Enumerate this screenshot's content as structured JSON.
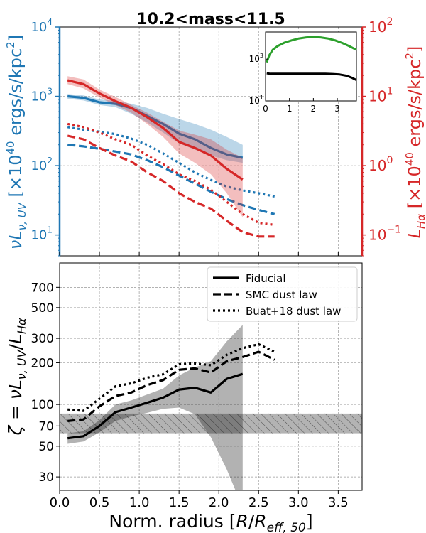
{
  "colors": {
    "uv": "#1f77b4",
    "ha": "#d62728",
    "green": "#2ca02c",
    "black": "#000000",
    "grid": "#999999"
  },
  "chart_data": [
    {
      "id": "top",
      "type": "line",
      "title": "10.2<mass<11.5",
      "x_range": [
        0.0,
        3.8
      ],
      "left_axis": {
        "label": "νL_{ν,UV} [×10^{40} ergs/s/kpc^{2}]",
        "label_parts": [
          "ν",
          "L",
          "ν, UV",
          " [×10",
          "40",
          " ergs/s/kpc",
          "2",
          "]"
        ],
        "scale": "log",
        "range": [
          5,
          10000
        ],
        "ticks": [
          {
            "v": 10,
            "label": "10",
            "exp": "1"
          },
          {
            "v": 100,
            "label": "10",
            "exp": "2"
          },
          {
            "v": 1000,
            "label": "10",
            "exp": "3"
          },
          {
            "v": 10000,
            "label": "10",
            "exp": "4"
          }
        ]
      },
      "right_axis": {
        "label": "L_{Hα} [×10^{40} ergs/s/kpc^{2}]",
        "label_parts": [
          "L",
          "Hα",
          " [×10",
          "40",
          " ergs/s/kpc",
          "2",
          "]"
        ],
        "scale": "log",
        "range": [
          0.05,
          100
        ],
        "ticks": [
          {
            "v": 0.1,
            "label": "10",
            "exp": "−1"
          },
          {
            "v": 1,
            "label": "10",
            "exp": "0"
          },
          {
            "v": 10,
            "label": "10",
            "exp": "1"
          },
          {
            "v": 100,
            "label": "10",
            "exp": "2"
          }
        ]
      },
      "series": [
        {
          "name": "UV fiducial",
          "axis": "left",
          "color": "uv",
          "style": "solid",
          "x": [
            0.1,
            0.3,
            0.5,
            0.7,
            0.9,
            1.1,
            1.3,
            1.5,
            1.7,
            1.9,
            2.1,
            2.3
          ],
          "y": [
            1000,
            950,
            820,
            780,
            680,
            520,
            400,
            290,
            240,
            180,
            145,
            130
          ]
        },
        {
          "name": "UV fiducial band",
          "axis": "left",
          "color": "uv",
          "style": "band",
          "x": [
            0.1,
            0.3,
            0.5,
            0.7,
            0.9,
            1.1,
            1.3,
            1.5,
            1.7,
            1.9,
            2.1,
            2.3
          ],
          "lo": [
            920,
            870,
            750,
            700,
            560,
            420,
            300,
            210,
            170,
            140,
            120,
            110
          ],
          "hi": [
            1080,
            1030,
            900,
            860,
            780,
            680,
            560,
            470,
            400,
            330,
            260,
            200
          ]
        },
        {
          "name": "UV SMC",
          "axis": "left",
          "color": "uv",
          "style": "dashed",
          "x": [
            0.1,
            0.3,
            0.5,
            0.7,
            0.9,
            1.1,
            1.3,
            1.5,
            1.7,
            1.9,
            2.1,
            2.3,
            2.5,
            2.7
          ],
          "y": [
            200,
            190,
            175,
            160,
            145,
            120,
            95,
            72,
            55,
            42,
            33,
            27,
            23,
            20
          ]
        },
        {
          "name": "UV Buat+18",
          "axis": "left",
          "color": "uv",
          "style": "dotted",
          "x": [
            0.1,
            0.3,
            0.5,
            0.7,
            0.9,
            1.1,
            1.3,
            1.5,
            1.7,
            1.9,
            2.1,
            2.3,
            2.5,
            2.7
          ],
          "y": [
            360,
            330,
            310,
            285,
            245,
            200,
            150,
            110,
            80,
            62,
            50,
            44,
            40,
            36
          ]
        },
        {
          "name": "Hα fiducial",
          "axis": "right",
          "color": "ha",
          "style": "solid",
          "x": [
            0.1,
            0.3,
            0.5,
            0.7,
            0.9,
            1.1,
            1.3,
            1.5,
            1.7,
            1.9,
            2.1,
            2.3
          ],
          "y": [
            17,
            15,
            11,
            8.5,
            6.8,
            5,
            3.5,
            2.2,
            1.8,
            1.4,
            0.9,
            0.63
          ]
        },
        {
          "name": "Hα fiducial band",
          "axis": "right",
          "color": "ha",
          "style": "band",
          "x": [
            0.1,
            0.3,
            0.5,
            0.7,
            0.9,
            1.1,
            1.3,
            1.5,
            1.7,
            1.9,
            2.1,
            2.3
          ],
          "lo": [
            15,
            13,
            9.6,
            7.5,
            5.8,
            4,
            2.6,
            1.5,
            1.1,
            0.75,
            0.4,
            0.18
          ],
          "hi": [
            19.5,
            17.5,
            12.5,
            9.8,
            7.5,
            5.8,
            4.3,
            3.2,
            2.8,
            2.4,
            1.7,
            1.3
          ]
        },
        {
          "name": "Hα SMC",
          "axis": "right",
          "color": "ha",
          "style": "dashed",
          "x": [
            0.1,
            0.3,
            0.5,
            0.7,
            0.9,
            1.1,
            1.3,
            1.5,
            1.7,
            1.9,
            2.1,
            2.3,
            2.5,
            2.7
          ],
          "y": [
            2.7,
            2.4,
            1.8,
            1.4,
            1.15,
            0.8,
            0.6,
            0.4,
            0.3,
            0.24,
            0.16,
            0.11,
            0.095,
            0.095
          ]
        },
        {
          "name": "Hα Buat+18",
          "axis": "right",
          "color": "ha",
          "style": "dotted",
          "x": [
            0.1,
            0.3,
            0.5,
            0.7,
            0.9,
            1.1,
            1.3,
            1.5,
            1.7,
            1.9,
            2.1,
            2.3,
            2.5,
            2.7
          ],
          "y": [
            4,
            3.6,
            3,
            2.4,
            2,
            1.4,
            1.05,
            0.75,
            0.6,
            0.45,
            0.3,
            0.2,
            0.15,
            0.14
          ]
        }
      ],
      "inset": {
        "type": "line",
        "x_range": [
          0.0,
          3.8
        ],
        "y_scale": "log",
        "y_range": [
          10,
          20000
        ],
        "x_ticks": [
          0,
          1,
          2,
          3
        ],
        "y_ticks": [
          {
            "v": 10,
            "label": "10",
            "exp": "1"
          },
          {
            "v": 1000,
            "label": "10",
            "exp": "3"
          }
        ],
        "series": [
          {
            "name": "green",
            "color": "green",
            "x": [
              0.05,
              0.15,
              0.3,
              0.5,
              0.8,
              1.1,
              1.4,
              1.7,
              2.0,
              2.3,
              2.6,
              2.9,
              3.2,
              3.5,
              3.8
            ],
            "y": [
              700,
              1500,
              2800,
              4200,
              6200,
              8000,
              9800,
              11000,
              11500,
              11000,
              9800,
              8000,
              6000,
              4200,
              2800
            ]
          },
          {
            "name": "black",
            "color": "black",
            "x": [
              0.05,
              0.2,
              0.5,
              1.0,
              1.5,
              2.0,
              2.5,
              2.8,
              3.1,
              3.4,
              3.6,
              3.8
            ],
            "y": [
              210,
              200,
              200,
              200,
              200,
              200,
              200,
              195,
              185,
              160,
              130,
              100
            ]
          }
        ]
      }
    },
    {
      "id": "bottom",
      "type": "line",
      "x_range": [
        0.0,
        3.8
      ],
      "xlabel_parts": [
        "Norm. radius [",
        "R",
        "/",
        "R",
        "eff, 50",
        "]"
      ],
      "x_ticks": [
        0.0,
        0.5,
        1.0,
        1.5,
        2.0,
        2.5,
        3.0,
        3.5
      ],
      "x_tick_labels": [
        "0.0",
        "0.5",
        "1.0",
        "1.5",
        "2.0",
        "2.5",
        "3.0",
        "3.5"
      ],
      "y_label_parts": [
        "ζ = ν",
        "L",
        "ν, UV",
        "/",
        "L",
        "Hα"
      ],
      "y_scale": "log",
      "y_range": [
        24,
        1050
      ],
      "y_ticks": [
        30,
        50,
        70,
        100,
        200,
        300,
        500,
        700
      ],
      "y_tick_labels": [
        "30",
        "50",
        "70",
        "100",
        "200",
        "300",
        "500",
        "700"
      ],
      "reference_band": {
        "lo": 62,
        "hi": 86,
        "hatched": true
      },
      "series": [
        {
          "name": "Fiducial",
          "style": "solid",
          "x": [
            0.1,
            0.3,
            0.5,
            0.7,
            0.9,
            1.1,
            1.3,
            1.5,
            1.7,
            1.9,
            2.1,
            2.3
          ],
          "y": [
            57,
            59,
            70,
            88,
            95,
            103,
            112,
            128,
            132,
            122,
            153,
            166
          ]
        },
        {
          "name": "Fiducial band",
          "style": "band",
          "x": [
            0.1,
            0.3,
            0.5,
            0.7,
            0.9,
            1.1,
            1.3,
            1.5,
            1.7,
            1.9,
            2.1,
            2.3
          ],
          "lo": [
            52,
            54,
            63,
            76,
            82,
            87,
            93,
            95,
            85,
            58,
            34,
            18
          ],
          "hi": [
            62,
            64,
            77,
            100,
            107,
            118,
            130,
            162,
            185,
            205,
            285,
            375
          ]
        },
        {
          "name": "SMC dust law",
          "style": "dashed",
          "x": [
            0.1,
            0.3,
            0.5,
            0.7,
            0.9,
            1.1,
            1.3,
            1.5,
            1.7,
            1.9,
            2.1,
            2.3,
            2.5,
            2.7
          ],
          "y": [
            76,
            78,
            97,
            115,
            122,
            138,
            150,
            178,
            182,
            170,
            205,
            220,
            240,
            210
          ]
        },
        {
          "name": "Buat+18 dust law",
          "style": "dotted",
          "x": [
            0.1,
            0.3,
            0.5,
            0.7,
            0.9,
            1.1,
            1.3,
            1.5,
            1.7,
            1.9,
            2.1,
            2.3,
            2.5,
            2.7
          ],
          "y": [
            92,
            90,
            110,
            135,
            142,
            156,
            165,
            195,
            198,
            192,
            228,
            255,
            272,
            240
          ]
        }
      ],
      "legend": {
        "position": "top-right",
        "entries": [
          {
            "label": "Fiducial",
            "style": "solid"
          },
          {
            "label": "SMC dust law",
            "style": "dashed"
          },
          {
            "label": "Buat+18 dust law",
            "style": "dotted"
          }
        ]
      }
    }
  ]
}
